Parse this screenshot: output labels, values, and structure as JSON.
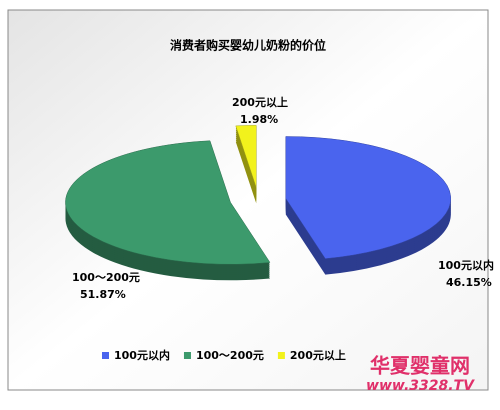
{
  "chart_data": {
    "type": "pie",
    "title": "消费者购买婴幼儿奶粉的价位",
    "categories": [
      "100元以内",
      "100～200元",
      "200元以上"
    ],
    "values": [
      46.15,
      51.87,
      1.98
    ],
    "value_labels": [
      "46.15%",
      "51.87%",
      "1.98%"
    ],
    "colors": [
      "#4a64ee",
      "#3c9a6c",
      "#f2f21c"
    ],
    "legend": "bottom"
  },
  "watermark": {
    "name": "华夏婴童网",
    "url": "www.3328.TV"
  }
}
